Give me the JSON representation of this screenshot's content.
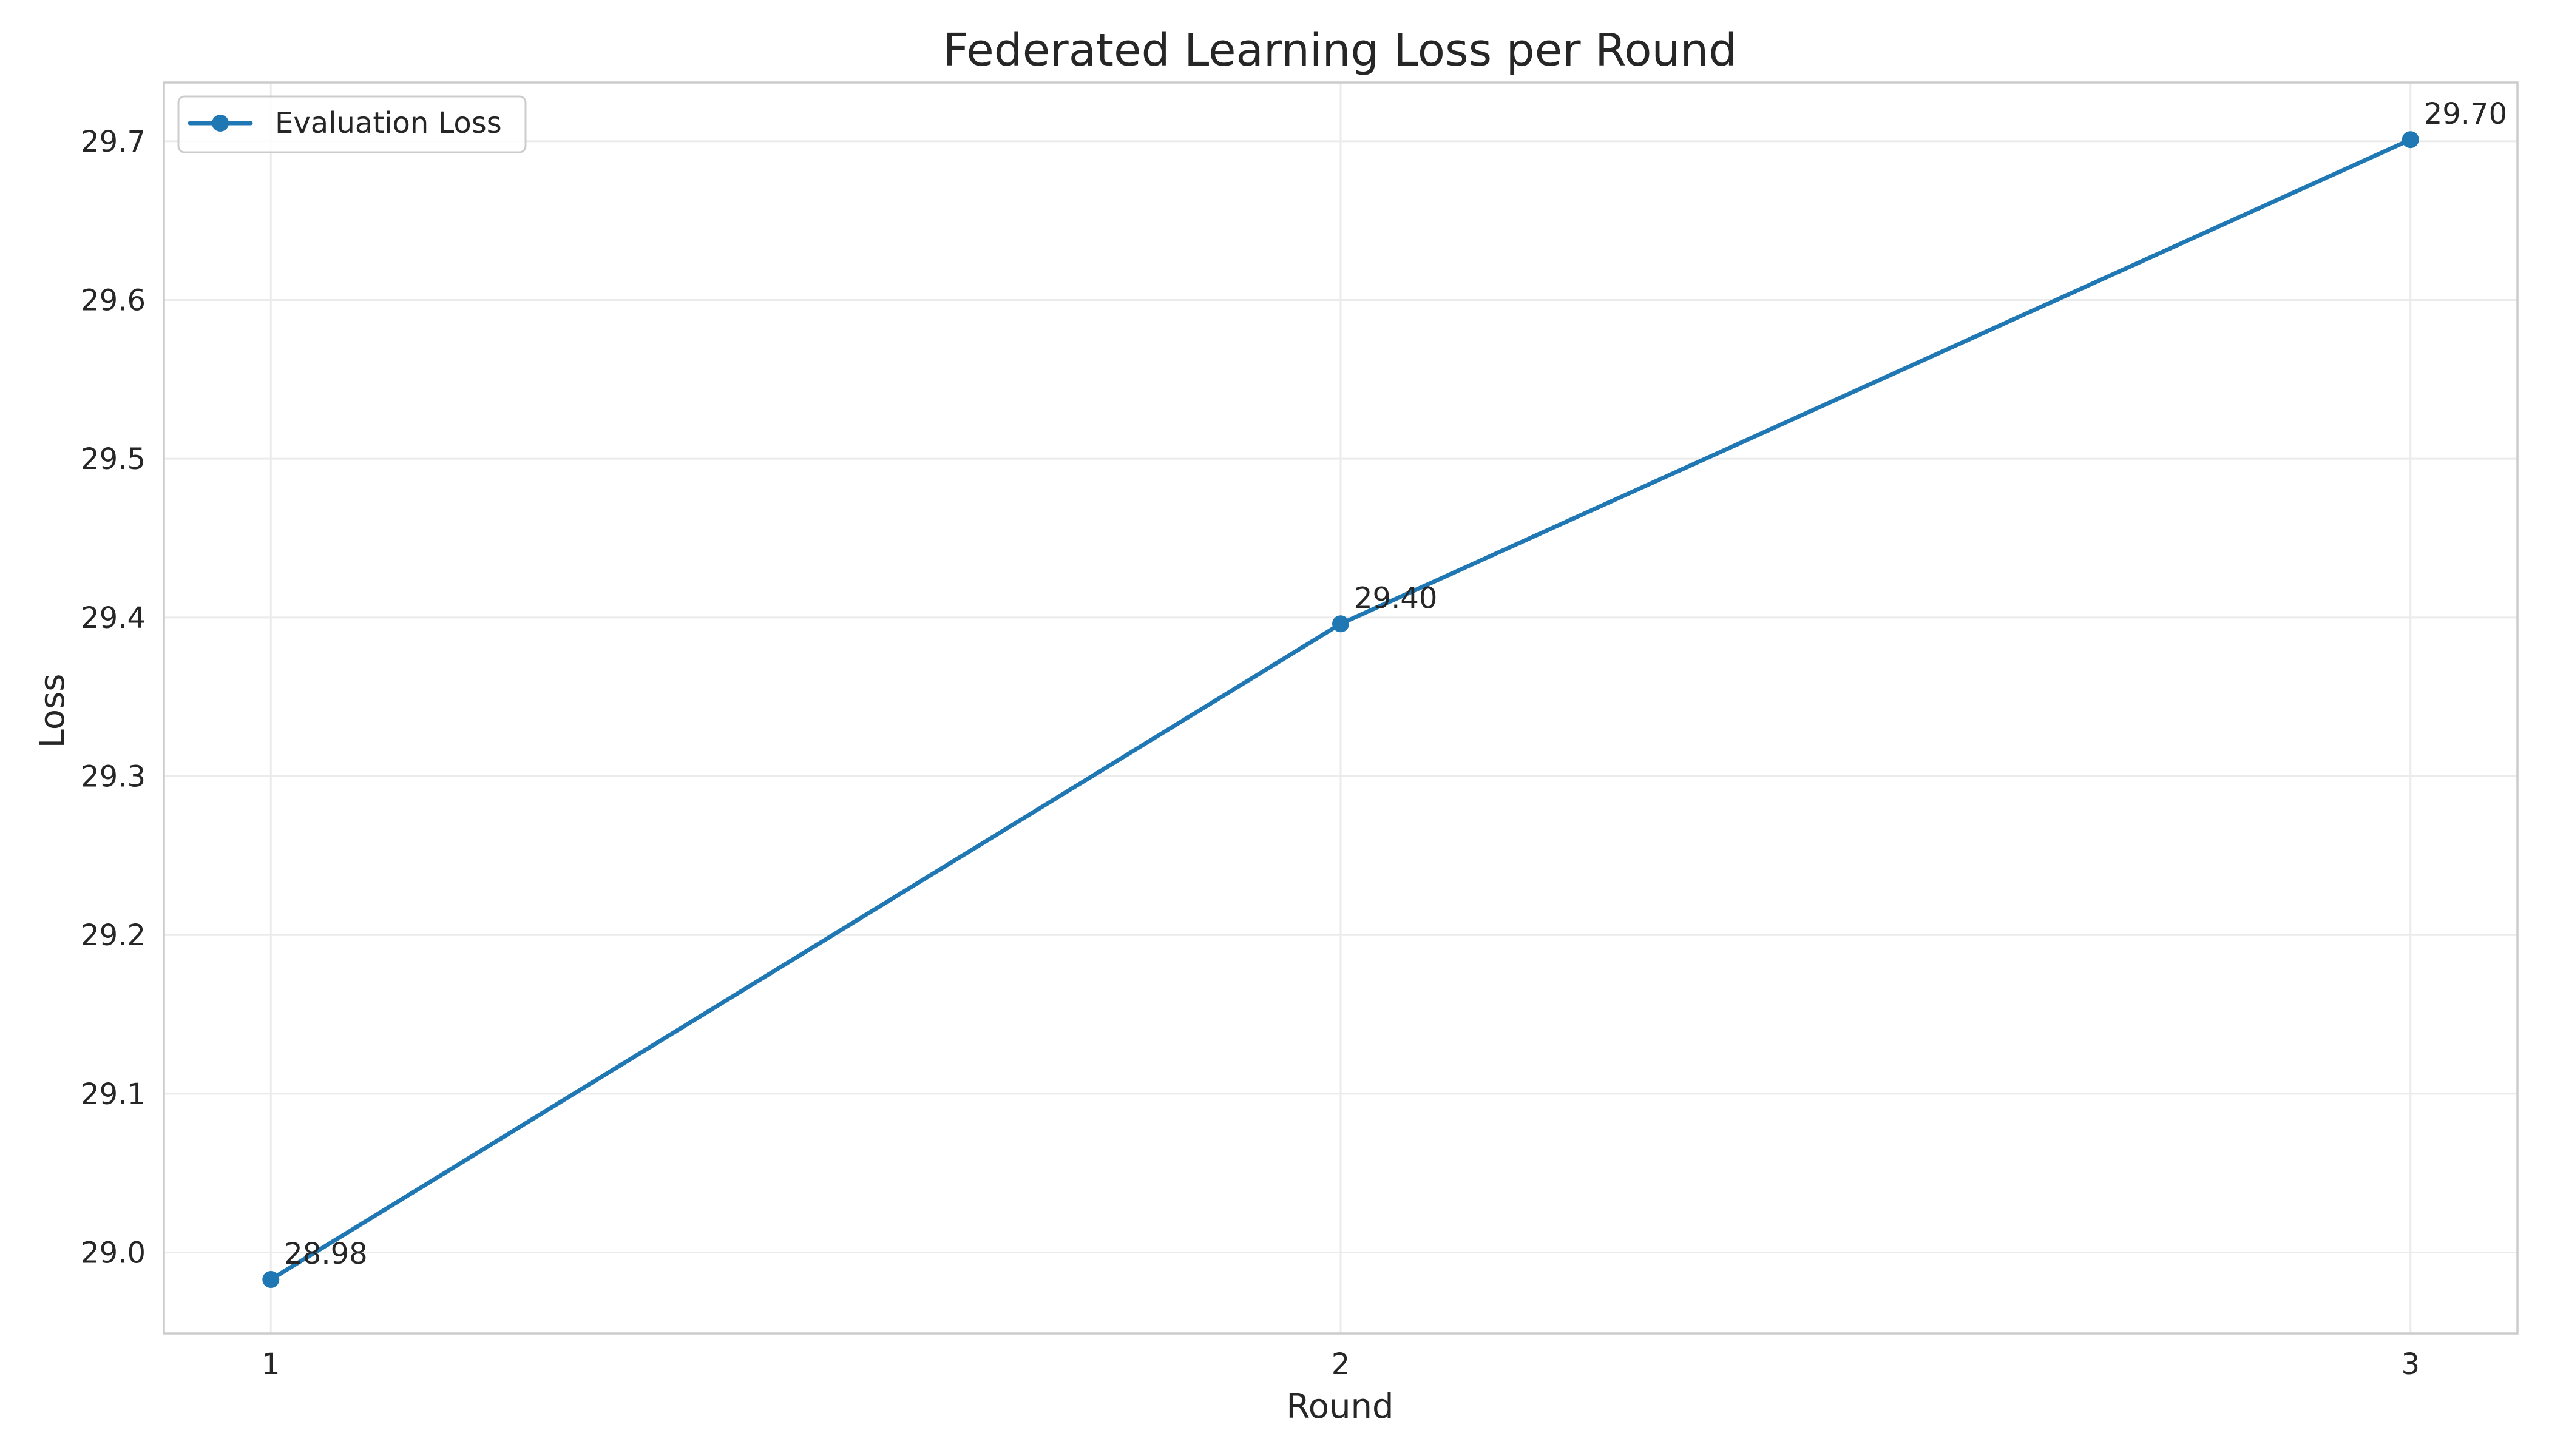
{
  "chart_data": {
    "type": "line",
    "title": "Federated Learning Loss per Round",
    "xlabel": "Round",
    "ylabel": "Loss",
    "x": [
      1,
      2,
      3
    ],
    "xticks": [
      "1",
      "2",
      "3"
    ],
    "xlim": [
      0.9,
      3.1
    ],
    "yticks": [
      "29.0",
      "29.1",
      "29.2",
      "29.3",
      "29.4",
      "29.5",
      "29.6",
      "29.7"
    ],
    "ylim": [
      28.949,
      29.737
    ],
    "grid": true,
    "legend_position": "top-left",
    "series": [
      {
        "name": "Evaluation Loss",
        "color": "#1f77b4",
        "marker": "circle",
        "values": [
          28.983,
          29.396,
          29.701
        ],
        "labels": [
          "28.98",
          "29.40",
          "29.70"
        ]
      }
    ]
  }
}
